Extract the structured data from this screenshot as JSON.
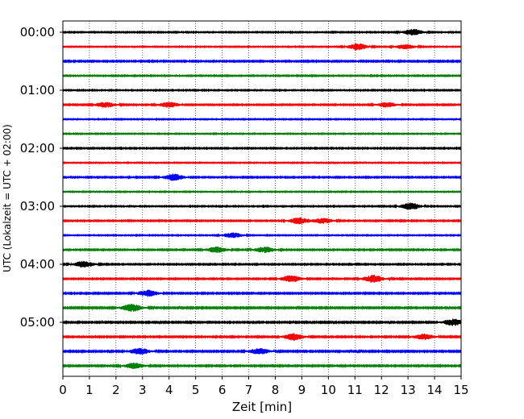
{
  "chart_data": {
    "type": "line",
    "title": "",
    "xlabel": "Zeit  [min]",
    "ylabel": "UTC (Lokalzeit = UTC + 02:00)",
    "xlim": [
      0,
      15
    ],
    "x_ticks": [
      0,
      1,
      2,
      3,
      4,
      5,
      6,
      7,
      8,
      9,
      10,
      11,
      12,
      13,
      14,
      15
    ],
    "y_tick_labels": [
      "00:00",
      "01:00",
      "02:00",
      "03:00",
      "04:00",
      "05:00"
    ],
    "trace_interval_min": 15,
    "trace_colors": [
      "#000000",
      "#ff0000",
      "#0000ff",
      "#008000"
    ],
    "grid": "vertical-dotted",
    "traces": [
      {
        "start": "00:00",
        "color": "#000000",
        "amplitude": 0.5,
        "bursts": [
          {
            "x": 13.2,
            "amp": 1.2
          }
        ]
      },
      {
        "start": "00:15",
        "color": "#ff0000",
        "amplitude": 0.45,
        "bursts": [
          {
            "x": 11.1,
            "amp": 1.3
          },
          {
            "x": 12.9,
            "amp": 0.9
          }
        ]
      },
      {
        "start": "00:30",
        "color": "#0000ff",
        "amplitude": 0.6,
        "bursts": []
      },
      {
        "start": "00:45",
        "color": "#008000",
        "amplitude": 0.5,
        "bursts": []
      },
      {
        "start": "01:00",
        "color": "#000000",
        "amplitude": 0.5,
        "bursts": []
      },
      {
        "start": "01:15",
        "color": "#ff0000",
        "amplitude": 0.55,
        "bursts": [
          {
            "x": 1.6,
            "amp": 1.0
          },
          {
            "x": 4.0,
            "amp": 1.0
          },
          {
            "x": 12.2,
            "amp": 0.9
          }
        ]
      },
      {
        "start": "01:30",
        "color": "#0000ff",
        "amplitude": 0.45,
        "bursts": []
      },
      {
        "start": "01:45",
        "color": "#008000",
        "amplitude": 0.45,
        "bursts": []
      },
      {
        "start": "02:00",
        "color": "#000000",
        "amplitude": 0.55,
        "bursts": []
      },
      {
        "start": "02:15",
        "color": "#ff0000",
        "amplitude": 0.45,
        "bursts": []
      },
      {
        "start": "02:30",
        "color": "#0000ff",
        "amplitude": 0.55,
        "bursts": [
          {
            "x": 4.2,
            "amp": 1.3
          }
        ]
      },
      {
        "start": "02:45",
        "color": "#008000",
        "amplitude": 0.45,
        "bursts": []
      },
      {
        "start": "03:00",
        "color": "#000000",
        "amplitude": 0.5,
        "bursts": [
          {
            "x": 13.1,
            "amp": 1.3
          }
        ]
      },
      {
        "start": "03:15",
        "color": "#ff0000",
        "amplitude": 0.55,
        "bursts": [
          {
            "x": 8.9,
            "amp": 1.2
          },
          {
            "x": 9.8,
            "amp": 1.0
          }
        ]
      },
      {
        "start": "03:30",
        "color": "#0000ff",
        "amplitude": 0.45,
        "bursts": [
          {
            "x": 6.4,
            "amp": 1.0
          }
        ]
      },
      {
        "start": "03:45",
        "color": "#008000",
        "amplitude": 0.55,
        "bursts": [
          {
            "x": 5.8,
            "amp": 1.1
          },
          {
            "x": 7.6,
            "amp": 1.1
          }
        ]
      },
      {
        "start": "04:00",
        "color": "#000000",
        "amplitude": 0.55,
        "bursts": [
          {
            "x": 0.8,
            "amp": 1.2
          }
        ]
      },
      {
        "start": "04:15",
        "color": "#ff0000",
        "amplitude": 0.55,
        "bursts": [
          {
            "x": 8.6,
            "amp": 1.3
          },
          {
            "x": 11.7,
            "amp": 1.4
          }
        ]
      },
      {
        "start": "04:30",
        "color": "#0000ff",
        "amplitude": 0.6,
        "bursts": [
          {
            "x": 3.2,
            "amp": 1.2
          }
        ]
      },
      {
        "start": "04:45",
        "color": "#008000",
        "amplitude": 0.65,
        "bursts": [
          {
            "x": 2.6,
            "amp": 1.4
          }
        ]
      },
      {
        "start": "05:00",
        "color": "#000000",
        "amplitude": 0.65,
        "bursts": [
          {
            "x": 14.7,
            "amp": 1.3
          }
        ]
      },
      {
        "start": "05:15",
        "color": "#ff0000",
        "amplitude": 0.6,
        "bursts": [
          {
            "x": 8.7,
            "amp": 1.3
          },
          {
            "x": 13.6,
            "amp": 1.1
          }
        ]
      },
      {
        "start": "05:30",
        "color": "#0000ff",
        "amplitude": 0.65,
        "bursts": [
          {
            "x": 2.9,
            "amp": 1.2
          },
          {
            "x": 7.4,
            "amp": 1.1
          }
        ]
      },
      {
        "start": "05:45",
        "color": "#008000",
        "amplitude": 0.6,
        "bursts": [
          {
            "x": 2.7,
            "amp": 1.1
          }
        ]
      }
    ]
  }
}
